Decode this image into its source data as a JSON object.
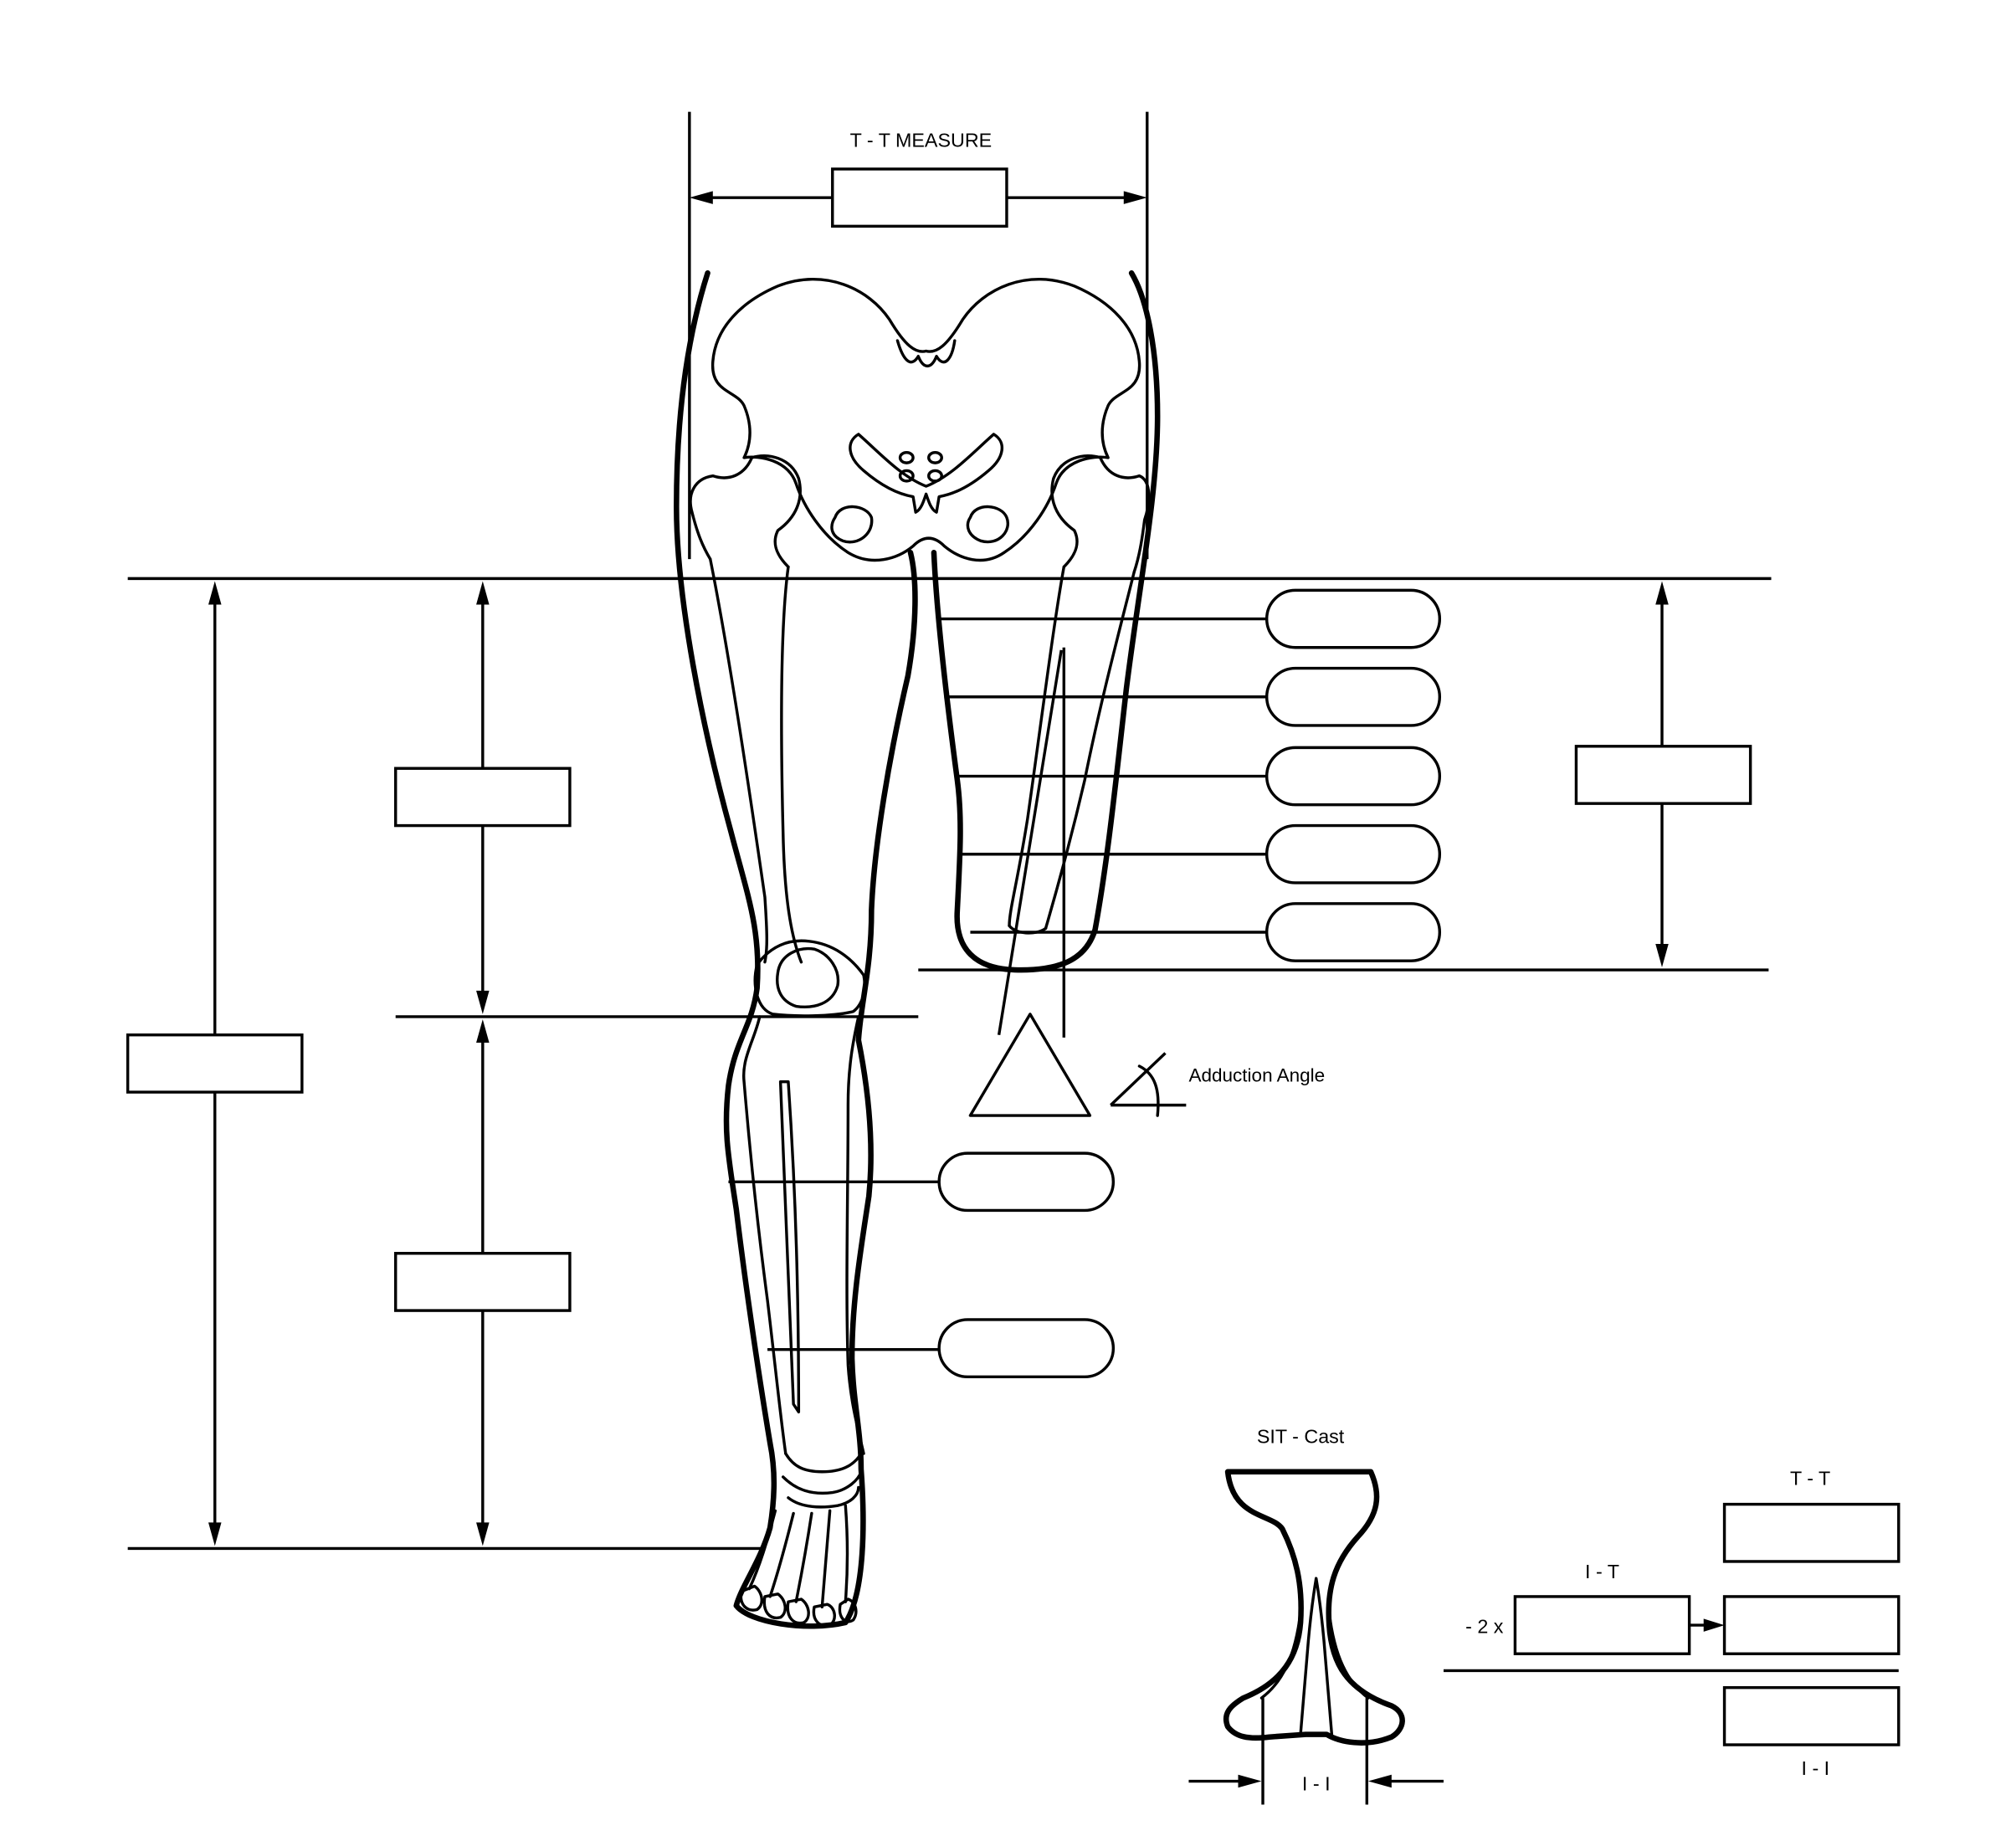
{
  "labels": {
    "tt_measure": "T - T MEASURE",
    "adduction_angle": "Adduction Angle",
    "sit_cast": "SIT - Cast",
    "tt": "T - T",
    "it": "I - T",
    "minus_two_x": "- 2 x",
    "ii_bottom_right": "I - I",
    "ii_cast": "I - I"
  },
  "colors": {
    "ink": "#000000",
    "paper": "#ffffff"
  },
  "icons": {
    "angle_symbol": "angle-icon",
    "delta_symbol": "triangle-icon"
  }
}
